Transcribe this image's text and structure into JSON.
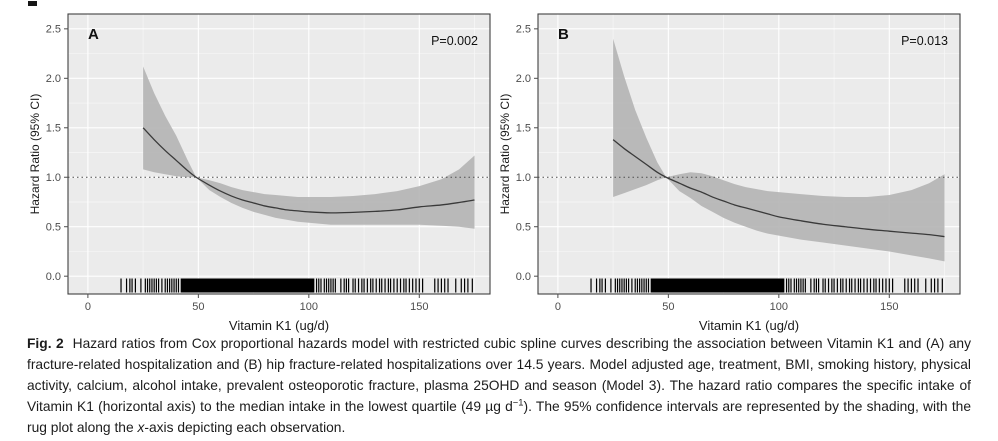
{
  "figure": {
    "caption_segments": [
      {
        "text": "Fig. 2",
        "style": "bold"
      },
      {
        "text": "Hazard ratios from Cox proportional hazards model with restricted cubic spline curves describing the association between Vitamin K1 and (A) any fracture-related hospitalization and (B) hip fracture-related hospitalizations over 14.5 years. Model adjusted age, treatment, BMI, smoking history, physical activity, calcium, alcohol intake, prevalent osteoporotic fracture, plasma 25OHD and season (Model 3). The hazard ratio compares the specific intake of Vitamin K1 (horizontal axis) to the median intake in the lowest quartile (49 µg d",
        "style": "normal"
      },
      {
        "text": "−1",
        "style": "superscript"
      },
      {
        "text": "). The 95% confidence intervals are represented by the shading, with the rug plot along the ",
        "style": "normal"
      },
      {
        "text": "x",
        "style": "italic"
      },
      {
        "text": "-axis depicting each observation.",
        "style": "normal"
      }
    ]
  },
  "chart_data": [
    {
      "type": "line",
      "panel_label": "A",
      "p_value": "P=0.002",
      "outcome": "any fracture-related hospitalization",
      "xlabel": "Vitamin K1 (ug/d)",
      "ylabel": "Hazard Ratio (95% CI)",
      "x_ticks": [
        {
          "value": 0,
          "label": "0"
        },
        {
          "value": 50,
          "label": "50"
        },
        {
          "value": 100,
          "label": "100"
        },
        {
          "value": 150,
          "label": "150"
        }
      ],
      "y_ticks": [
        {
          "value": 0,
          "label": "0.0"
        },
        {
          "value": 0.5,
          "label": "0.5"
        },
        {
          "value": 1,
          "label": "1.0"
        },
        {
          "value": 1.5,
          "label": "1.5"
        },
        {
          "value": 2,
          "label": "2.0"
        },
        {
          "value": 2.5,
          "label": "2.5"
        }
      ],
      "x_minor_ticks": [
        25,
        75,
        125,
        175
      ],
      "y_minor_ticks": [
        0.25,
        0.75,
        1.25,
        1.75,
        2.25
      ],
      "xlim": [
        -9,
        182
      ],
      "ylim": [
        -0.18,
        2.65
      ],
      "reference_line_y": 1.0,
      "x": [
        25,
        30,
        35,
        40,
        45,
        49,
        55,
        60,
        65,
        70,
        75,
        80,
        85,
        90,
        95,
        100,
        110,
        120,
        130,
        140,
        150,
        160,
        168,
        175
      ],
      "hazard_ratio": [
        1.5,
        1.38,
        1.27,
        1.17,
        1.07,
        1.0,
        0.92,
        0.86,
        0.81,
        0.77,
        0.74,
        0.71,
        0.69,
        0.67,
        0.66,
        0.65,
        0.64,
        0.645,
        0.655,
        0.67,
        0.7,
        0.72,
        0.745,
        0.77
      ],
      "ci_upper": [
        2.12,
        1.85,
        1.62,
        1.42,
        1.18,
        1.0,
        0.97,
        0.94,
        0.9,
        0.87,
        0.85,
        0.83,
        0.82,
        0.81,
        0.8,
        0.8,
        0.8,
        0.81,
        0.83,
        0.86,
        0.91,
        0.98,
        1.08,
        1.22
      ],
      "ci_lower": [
        1.08,
        1.05,
        1.03,
        1.01,
        1.0,
        1.0,
        0.87,
        0.8,
        0.74,
        0.69,
        0.65,
        0.62,
        0.59,
        0.57,
        0.55,
        0.54,
        0.52,
        0.52,
        0.52,
        0.52,
        0.52,
        0.51,
        0.5,
        0.48
      ]
    },
    {
      "type": "line",
      "panel_label": "B",
      "p_value": "P=0.013",
      "outcome": "hip fracture-related hospitalizations",
      "xlabel": "Vitamin K1 (ug/d)",
      "ylabel": "Hazard Ratio (95% CI)",
      "x_ticks": [
        {
          "value": 0,
          "label": "0"
        },
        {
          "value": 50,
          "label": "50"
        },
        {
          "value": 100,
          "label": "100"
        },
        {
          "value": 150,
          "label": "150"
        }
      ],
      "y_ticks": [
        {
          "value": 0,
          "label": "0.0"
        },
        {
          "value": 0.5,
          "label": "0.5"
        },
        {
          "value": 1,
          "label": "1.0"
        },
        {
          "value": 1.5,
          "label": "1.5"
        },
        {
          "value": 2,
          "label": "2.0"
        },
        {
          "value": 2.5,
          "label": "2.5"
        }
      ],
      "x_minor_ticks": [
        25,
        75,
        125,
        175
      ],
      "y_minor_ticks": [
        0.25,
        0.75,
        1.25,
        1.75,
        2.25
      ],
      "xlim": [
        -9,
        182
      ],
      "ylim": [
        -0.18,
        2.65
      ],
      "reference_line_y": 1.0,
      "x": [
        25,
        30,
        35,
        40,
        45,
        49,
        55,
        60,
        65,
        70,
        75,
        80,
        85,
        90,
        95,
        100,
        110,
        120,
        130,
        140,
        150,
        160,
        168,
        175
      ],
      "hazard_ratio": [
        1.38,
        1.29,
        1.21,
        1.13,
        1.05,
        1.0,
        0.94,
        0.89,
        0.85,
        0.8,
        0.76,
        0.72,
        0.69,
        0.66,
        0.63,
        0.6,
        0.56,
        0.525,
        0.5,
        0.475,
        0.455,
        0.435,
        0.42,
        0.4
      ],
      "ci_upper": [
        2.4,
        2.02,
        1.68,
        1.4,
        1.15,
        1.0,
        1.03,
        1.05,
        1.04,
        1.01,
        0.97,
        0.93,
        0.9,
        0.88,
        0.86,
        0.85,
        0.83,
        0.81,
        0.8,
        0.8,
        0.82,
        0.87,
        0.94,
        1.03
      ],
      "ci_lower": [
        0.8,
        0.84,
        0.88,
        0.92,
        0.97,
        1.0,
        0.86,
        0.79,
        0.71,
        0.65,
        0.59,
        0.54,
        0.5,
        0.46,
        0.43,
        0.41,
        0.37,
        0.34,
        0.31,
        0.28,
        0.25,
        0.21,
        0.18,
        0.15
      ]
    }
  ],
  "rug": {
    "description": "observation marks along x-axis, same cohort shown in both panels",
    "dense_range": [
      42,
      102.5
    ],
    "ticks": [
      15,
      17.5,
      19,
      20,
      21.5,
      24,
      26,
      27,
      28,
      29,
      30,
      31,
      32,
      33.5,
      35,
      36,
      37,
      38,
      39,
      40,
      41,
      103.5,
      104.5,
      105.5,
      107,
      108,
      109,
      110,
      111,
      112,
      114.5,
      116,
      117,
      118,
      120,
      121,
      122.5,
      124,
      125,
      126.5,
      128,
      129,
      130.5,
      132,
      133,
      134.5,
      136,
      137,
      138.5,
      140,
      141.5,
      143,
      144,
      145.5,
      147,
      148.5,
      150,
      151.5,
      157,
      158.5,
      160,
      161.5,
      163,
      166.5,
      169,
      170.5,
      172,
      174
    ]
  },
  "colors": {
    "panel_background": "#ebebeb",
    "grid_major": "#ffffff",
    "grid_minor": "#f7f7f7",
    "confidence_band": "#b4b4b4",
    "curve": "#3a3a3a",
    "reference_line": "#4d4d4d",
    "rug": "#000000",
    "panel_border": "#404040",
    "axis_text": "#4d4d4d",
    "axis_title": "#1a1a1a",
    "panel_label": "#111111"
  }
}
